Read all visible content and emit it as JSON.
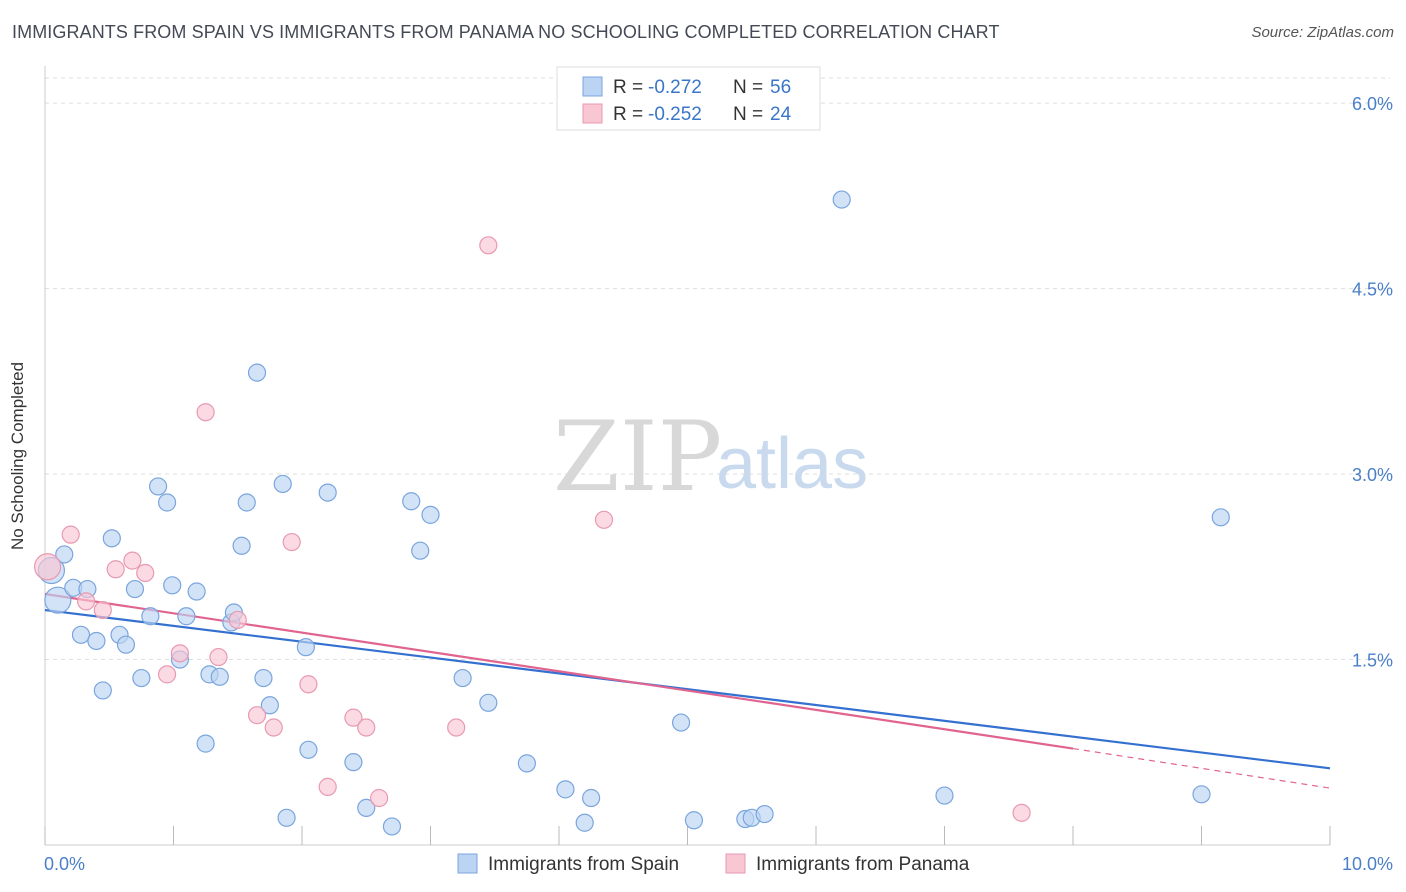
{
  "title": "IMMIGRANTS FROM SPAIN VS IMMIGRANTS FROM PANAMA NO SCHOOLING COMPLETED CORRELATION CHART",
  "source": "Source: ZipAtlas.com",
  "watermark": {
    "zip": "ZIP",
    "atlas": "atlas"
  },
  "colors": {
    "spain_fill": "#bcd4f3",
    "spain_stroke": "#7aa5dd",
    "spain_line": "#3470d0",
    "panama_fill": "#f9c6d4",
    "panama_stroke": "#e79ab2",
    "panama_line": "#e0648f",
    "grid": "#dddddd",
    "axis_text": "#4a7fc8"
  },
  "legend": {
    "rows": [
      {
        "r_label": "R = ",
        "r_value": "-0.272",
        "n_label": "N = ",
        "n_value": "56",
        "series": "spain"
      },
      {
        "r_label": "R = ",
        "r_value": "-0.252",
        "n_label": "N = ",
        "n_value": "24",
        "series": "panama"
      }
    ]
  },
  "chart_data": {
    "type": "scatter",
    "title": "IMMIGRANTS FROM SPAIN VS IMMIGRANTS FROM PANAMA NO SCHOOLING COMPLETED CORRELATION CHART",
    "xlabel": "",
    "ylabel": "No Schooling Completed",
    "xlim": [
      0,
      10
    ],
    "ylim": [
      0,
      6.3
    ],
    "x_tick_labels": [
      "0.0%",
      "10.0%"
    ],
    "x_tick_values": [
      0,
      10
    ],
    "x_minor_ticks": [
      1,
      2,
      3,
      4,
      5,
      6,
      7,
      8,
      9
    ],
    "y_tick_labels": [
      "1.5%",
      "3.0%",
      "4.5%",
      "6.0%"
    ],
    "y_tick_values": [
      1.5,
      3.0,
      4.5,
      6.0
    ],
    "grid": true,
    "legend_position": "top-center",
    "series": [
      {
        "name": "Immigrants from Spain",
        "key": "spain",
        "points": [
          [
            0.05,
            2.22
          ],
          [
            0.1,
            1.98
          ],
          [
            0.15,
            2.35
          ],
          [
            0.22,
            2.08
          ],
          [
            0.28,
            1.7
          ],
          [
            0.33,
            2.07
          ],
          [
            0.4,
            1.65
          ],
          [
            0.45,
            1.25
          ],
          [
            0.52,
            2.48
          ],
          [
            0.58,
            1.7
          ],
          [
            0.63,
            1.62
          ],
          [
            0.7,
            2.07
          ],
          [
            0.75,
            1.35
          ],
          [
            0.82,
            1.85
          ],
          [
            0.88,
            2.9
          ],
          [
            0.95,
            2.77
          ],
          [
            0.99,
            2.1
          ],
          [
            1.05,
            1.5
          ],
          [
            1.1,
            1.85
          ],
          [
            1.18,
            2.05
          ],
          [
            1.25,
            0.82
          ],
          [
            1.28,
            1.38
          ],
          [
            1.36,
            1.36
          ],
          [
            1.45,
            1.8
          ],
          [
            1.47,
            1.88
          ],
          [
            1.53,
            2.42
          ],
          [
            1.57,
            2.77
          ],
          [
            1.65,
            3.82
          ],
          [
            1.7,
            1.35
          ],
          [
            1.75,
            1.13
          ],
          [
            1.85,
            2.92
          ],
          [
            1.88,
            0.22
          ],
          [
            2.03,
            1.6
          ],
          [
            2.05,
            0.77
          ],
          [
            2.2,
            2.85
          ],
          [
            2.4,
            0.67
          ],
          [
            2.5,
            0.3
          ],
          [
            2.7,
            0.15
          ],
          [
            2.85,
            2.78
          ],
          [
            2.92,
            2.38
          ],
          [
            3.0,
            2.67
          ],
          [
            3.25,
            1.35
          ],
          [
            3.45,
            1.15
          ],
          [
            3.75,
            0.66
          ],
          [
            4.05,
            0.45
          ],
          [
            4.2,
            0.18
          ],
          [
            4.25,
            0.38
          ],
          [
            4.95,
            0.99
          ],
          [
            5.05,
            0.2
          ],
          [
            5.45,
            0.21
          ],
          [
            5.5,
            0.22
          ],
          [
            5.6,
            0.25
          ],
          [
            6.2,
            5.22
          ],
          [
            7.0,
            0.4
          ],
          [
            9.0,
            0.41
          ],
          [
            9.15,
            2.65
          ]
        ]
      },
      {
        "name": "Immigrants from Panama",
        "key": "panama",
        "points": [
          [
            0.02,
            2.25
          ],
          [
            0.2,
            2.51
          ],
          [
            0.32,
            1.97
          ],
          [
            0.45,
            1.9
          ],
          [
            0.55,
            2.23
          ],
          [
            0.68,
            2.3
          ],
          [
            0.78,
            2.2
          ],
          [
            0.95,
            1.38
          ],
          [
            1.05,
            1.55
          ],
          [
            1.25,
            3.5
          ],
          [
            1.35,
            1.52
          ],
          [
            1.5,
            1.82
          ],
          [
            1.65,
            1.05
          ],
          [
            1.78,
            0.95
          ],
          [
            1.92,
            2.45
          ],
          [
            2.05,
            1.3
          ],
          [
            2.2,
            0.47
          ],
          [
            2.4,
            1.03
          ],
          [
            2.5,
            0.95
          ],
          [
            2.6,
            0.38
          ],
          [
            3.2,
            0.95
          ],
          [
            3.45,
            4.85
          ],
          [
            4.35,
            2.63
          ],
          [
            7.6,
            0.26
          ]
        ]
      }
    ],
    "trend_lines": [
      {
        "series": "spain",
        "x": [
          0,
          10
        ],
        "y": [
          1.9,
          0.62
        ],
        "style": "solid"
      },
      {
        "series": "panama",
        "x": [
          0,
          8.0
        ],
        "y": [
          2.03,
          0.78
        ],
        "style": "solid"
      },
      {
        "series": "panama",
        "x": [
          8.0,
          10
        ],
        "y": [
          0.78,
          0.46
        ],
        "style": "dashed"
      }
    ]
  },
  "bottom_legend": [
    {
      "label": "Immigrants from Spain",
      "series": "spain"
    },
    {
      "label": "Immigrants from Panama",
      "series": "panama"
    }
  ]
}
